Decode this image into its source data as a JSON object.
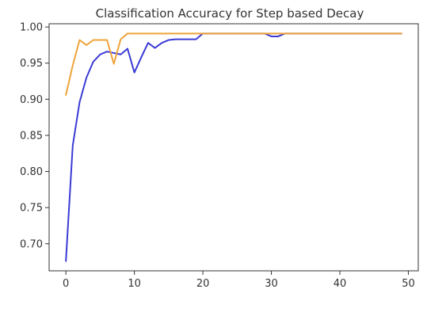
{
  "chart_data": {
    "type": "line",
    "title": "Classification Accuracy for Step based Decay",
    "xlabel": "",
    "ylabel": "",
    "xlim": [
      -2.45,
      51.45
    ],
    "ylim": [
      0.6625,
      1.0045
    ],
    "xticks": [
      0,
      10,
      20,
      30,
      40,
      50
    ],
    "xtick_labels": [
      "0",
      "10",
      "20",
      "30",
      "40",
      "50"
    ],
    "yticks": [
      0.7,
      0.75,
      0.8,
      0.85,
      0.9,
      0.95,
      1.0
    ],
    "ytick_labels": [
      "0.70",
      "0.75",
      "0.80",
      "0.85",
      "0.90",
      "0.95",
      "1.00"
    ],
    "grid": false,
    "legend": "none",
    "x": [
      0,
      1,
      2,
      3,
      4,
      5,
      6,
      7,
      8,
      9,
      10,
      11,
      12,
      13,
      14,
      15,
      16,
      17,
      18,
      19,
      20,
      21,
      22,
      23,
      24,
      25,
      26,
      27,
      28,
      29,
      30,
      31,
      32,
      33,
      34,
      35,
      36,
      37,
      38,
      39,
      40,
      41,
      42,
      43,
      44,
      45,
      46,
      47,
      48,
      49
    ],
    "series": [
      {
        "color": "#3b3bd6",
        "values": [
          0.676,
          0.836,
          0.896,
          0.93,
          0.952,
          0.962,
          0.966,
          0.964,
          0.962,
          0.97,
          0.937,
          0.958,
          0.978,
          0.971,
          0.978,
          0.982,
          0.983,
          0.983,
          0.983,
          0.983,
          0.991,
          0.991,
          0.991,
          0.991,
          0.991,
          0.991,
          0.991,
          0.991,
          0.991,
          0.991,
          0.987,
          0.987,
          0.991,
          0.991,
          0.991,
          0.991,
          0.991,
          0.991,
          0.991,
          0.991,
          0.991,
          0.991,
          0.991,
          0.991,
          0.991,
          0.991,
          0.991,
          0.991,
          0.991,
          0.991
        ]
      },
      {
        "color": "#eea43a",
        "values": [
          0.906,
          0.947,
          0.982,
          0.975,
          0.982,
          0.982,
          0.982,
          0.949,
          0.983,
          0.991,
          0.991,
          0.991,
          0.991,
          0.991,
          0.991,
          0.991,
          0.991,
          0.991,
          0.991,
          0.991,
          0.991,
          0.991,
          0.991,
          0.991,
          0.991,
          0.991,
          0.991,
          0.991,
          0.991,
          0.991,
          0.991,
          0.991,
          0.991,
          0.991,
          0.991,
          0.991,
          0.991,
          0.991,
          0.991,
          0.991,
          0.991,
          0.991,
          0.991,
          0.991,
          0.991,
          0.991,
          0.991,
          0.991,
          0.991,
          0.991
        ]
      }
    ]
  }
}
